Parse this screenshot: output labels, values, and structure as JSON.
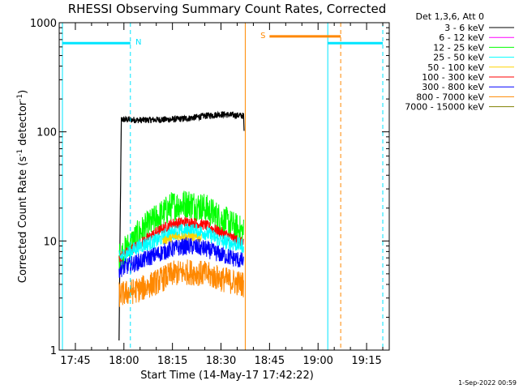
{
  "chart_data": {
    "type": "line",
    "title": "RHESSI Observing Summary Count Rates, Corrected",
    "xlabel": "Start Time (14-May-17 17:42:22)",
    "ylabel_main": "Corrected Count Rate (s",
    "ylabel_sup1": "-1",
    "ylabel_mid": " detector",
    "ylabel_sup2": "-1",
    "ylabel_end": ")",
    "ylabel": "Corrected Count Rate (s-1 detector-1)",
    "yscale": "log",
    "ylim": [
      1,
      1000
    ],
    "xlim": [
      "17:40",
      "19:22"
    ],
    "x_minutes_range": [
      100,
      202
    ],
    "y_ticks": [
      {
        "value": 1,
        "label": "1"
      },
      {
        "value": 10,
        "label": "10"
      },
      {
        "value": 100,
        "label": "100"
      },
      {
        "value": 1000,
        "label": "1000"
      }
    ],
    "x_ticks": [
      {
        "minute": 105,
        "label": "17:45"
      },
      {
        "minute": 120,
        "label": "18:00"
      },
      {
        "minute": 135,
        "label": "18:15"
      },
      {
        "minute": 150,
        "label": "18:30"
      },
      {
        "minute": 165,
        "label": "18:45"
      },
      {
        "minute": 180,
        "label": "19:00"
      },
      {
        "minute": 195,
        "label": "19:15"
      }
    ],
    "legend_header": "Det 1,3,6, Att 0",
    "legend": [
      {
        "label": "3 - 6 keV",
        "color": "#000000"
      },
      {
        "label": "6 - 12 keV",
        "color": "#ff00ff"
      },
      {
        "label": "12 - 25 keV",
        "color": "#00ff00"
      },
      {
        "label": "25 - 50 keV",
        "color": "#00ffff"
      },
      {
        "label": "50 - 100 keV",
        "color": "#ffd400"
      },
      {
        "label": "100 - 300 keV",
        "color": "#ff0000"
      },
      {
        "label": "300 - 800 keV",
        "color": "#0000ff"
      },
      {
        "label": "800 - 7000 keV",
        "color": "#ff8800"
      },
      {
        "label": "7000 - 15000 keV",
        "color": "#808000"
      }
    ],
    "series": [
      {
        "name": "3 - 6 keV",
        "color": "#000000",
        "noise": 0.03,
        "points": [
          [
            118.5,
            1.2
          ],
          [
            118.8,
            11
          ],
          [
            119.2,
            130
          ],
          [
            125,
            128
          ],
          [
            135,
            130
          ],
          [
            140,
            133
          ],
          [
            145,
            140
          ],
          [
            150,
            145
          ],
          [
            157,
            140
          ],
          [
            157.2,
            85
          ]
        ]
      },
      {
        "name": "12 - 25 keV",
        "color": "#00ff00",
        "noise": 0.14,
        "points": [
          [
            118.5,
            7
          ],
          [
            125,
            12
          ],
          [
            130,
            16
          ],
          [
            135,
            21
          ],
          [
            140,
            22
          ],
          [
            145,
            20
          ],
          [
            150,
            16
          ],
          [
            157,
            12
          ]
        ]
      },
      {
        "name": "100 - 300 keV",
        "color": "#ff0000",
        "noise": 0.05,
        "points": [
          [
            118.5,
            7
          ],
          [
            125,
            9.5
          ],
          [
            130,
            12
          ],
          [
            135,
            14.5
          ],
          [
            140,
            15
          ],
          [
            145,
            14
          ],
          [
            150,
            12
          ],
          [
            157,
            9.5
          ]
        ]
      },
      {
        "name": "25 - 50 keV",
        "color": "#00ffff",
        "noise": 0.07,
        "points": [
          [
            118.5,
            7
          ],
          [
            125,
            9
          ],
          [
            130,
            10
          ],
          [
            135,
            12
          ],
          [
            140,
            12.5
          ],
          [
            145,
            12
          ],
          [
            150,
            10
          ],
          [
            157,
            9
          ]
        ]
      },
      {
        "name": "50 - 100 keV",
        "color": "#ffd400",
        "noise": 0.04,
        "points": [
          [
            132,
            10
          ],
          [
            136,
            11
          ],
          [
            140,
            11
          ],
          [
            144,
            10.5
          ]
        ]
      },
      {
        "name": "300 - 800 keV",
        "color": "#0000ff",
        "noise": 0.08,
        "points": [
          [
            118.5,
            5.5
          ],
          [
            125,
            6.5
          ],
          [
            130,
            7.5
          ],
          [
            135,
            8.5
          ],
          [
            140,
            9
          ],
          [
            145,
            8.5
          ],
          [
            150,
            7.5
          ],
          [
            157,
            6.5
          ]
        ]
      },
      {
        "name": "800 - 7000 keV",
        "color": "#ff8800",
        "noise": 0.12,
        "points": [
          [
            118.5,
            3.2
          ],
          [
            125,
            3.6
          ],
          [
            130,
            4.2
          ],
          [
            135,
            5
          ],
          [
            140,
            5.2
          ],
          [
            145,
            5
          ],
          [
            150,
            4.5
          ],
          [
            157,
            4
          ]
        ]
      }
    ],
    "flag_bars": [
      {
        "label": "N",
        "color": "#00e5ff",
        "y": 650,
        "x_start": 101,
        "x_end": 122
      },
      {
        "label": "",
        "color": "#00e5ff",
        "y": 650,
        "x_start": 183,
        "x_end": 200
      },
      {
        "label": "S",
        "color": "#ff8800",
        "y": 750,
        "x_start": 165,
        "x_end": 187
      }
    ],
    "vlines": [
      {
        "x": 101,
        "color": "#00e5ff",
        "style": "solid"
      },
      {
        "x": 122,
        "color": "#00e5ff",
        "style": "dashed"
      },
      {
        "x": 183,
        "color": "#00e5ff",
        "style": "solid"
      },
      {
        "x": 200,
        "color": "#00e5ff",
        "style": "dashed"
      },
      {
        "x": 157.5,
        "color": "#ff8800",
        "style": "solid"
      },
      {
        "x": 187,
        "color": "#ff8800",
        "style": "dashed"
      }
    ],
    "grid": false
  },
  "footer": {
    "timestamp": "1-Sep-2022 00:59"
  }
}
